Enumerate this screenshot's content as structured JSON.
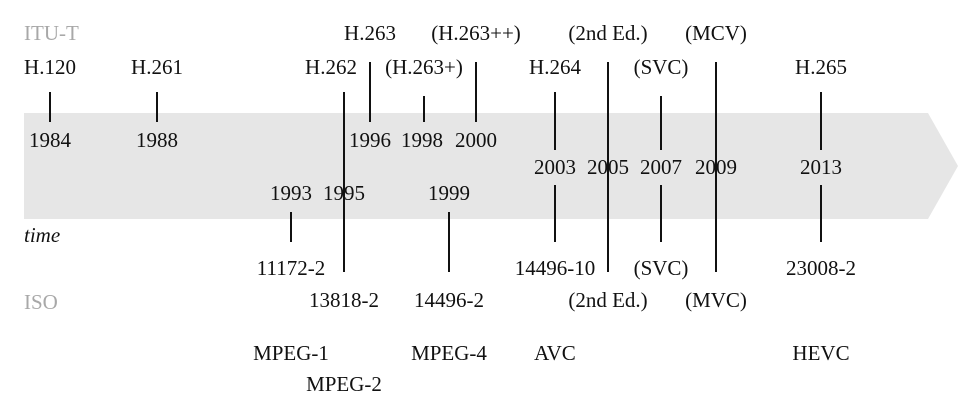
{
  "colors": {
    "arrow": "#e6e6e6",
    "line": "#111111",
    "group_label": "#a8a8a8"
  },
  "groups": {
    "itu": "ITU-T",
    "iso": "ISO"
  },
  "axis_label": "time",
  "itu": {
    "h120": {
      "name": "H.120",
      "year": "1984"
    },
    "h261": {
      "name": "H.261",
      "year": "1988"
    },
    "h262": {
      "name": "H.262"
    },
    "h263": {
      "name": "H.263",
      "year": "1996"
    },
    "h263p": {
      "name": "(H.263+)",
      "year": "1998"
    },
    "h263pp": {
      "name": "(H.263++)",
      "year": "2000"
    },
    "h264": {
      "name": "H.264"
    },
    "h264_2nd": {
      "name": "(2nd Ed.)"
    },
    "h264_svc": {
      "name": "(SVC)"
    },
    "h264_mvc": {
      "name": "(MCV)"
    },
    "h265": {
      "name": "H.265"
    }
  },
  "iso": {
    "mpeg1": {
      "number": "11172-2",
      "year": "1993",
      "family": "MPEG-1"
    },
    "mpeg2": {
      "number": "13818-2",
      "year": "1995",
      "family": "MPEG-2"
    },
    "mpeg4": {
      "number": "14496-2",
      "year": "1999",
      "family": "MPEG-4"
    },
    "avc": {
      "number": "14496-10",
      "year": "2003",
      "family": "AVC"
    },
    "avc_2nd": {
      "name": "(2nd Ed.)",
      "year": "2005"
    },
    "avc_svc": {
      "name": "(SVC)",
      "year": "2007"
    },
    "avc_mvc": {
      "name": "(MVC)",
      "year": "2009"
    },
    "hevc": {
      "number": "23008-2",
      "year": "2013",
      "family": "HEVC"
    }
  }
}
